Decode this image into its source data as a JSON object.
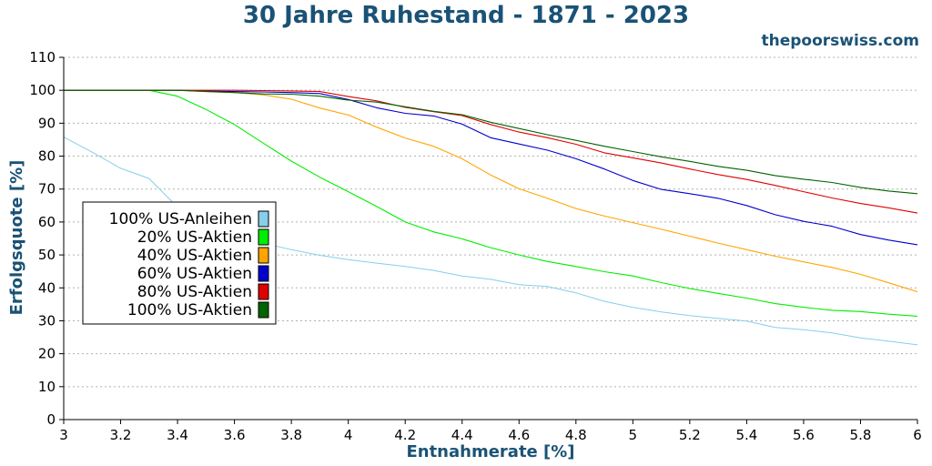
{
  "brand": "thepoorswiss.com",
  "chart_data": {
    "type": "line",
    "title": "30 Jahre Ruhestand - 1871 - 2023",
    "xlabel": "Entnahmerate [%]",
    "ylabel": "Erfolgsquote [%]",
    "xlim": [
      3,
      6
    ],
    "ylim": [
      0,
      110
    ],
    "xticks": [
      "3",
      "3.2",
      "3.4",
      "3.6",
      "3.8",
      "4",
      "4.2",
      "4.4",
      "4.6",
      "4.8",
      "5",
      "5.2",
      "5.4",
      "5.6",
      "5.8",
      "6"
    ],
    "yticks": [
      "0",
      "10",
      "20",
      "30",
      "40",
      "50",
      "60",
      "70",
      "80",
      "90",
      "100",
      "110"
    ],
    "grid": "horizontal-dotted",
    "legend_position": "middle-left",
    "x": [
      3.0,
      3.1,
      3.2,
      3.3,
      3.4,
      3.5,
      3.6,
      3.7,
      3.8,
      3.9,
      4.0,
      4.1,
      4.2,
      4.3,
      4.4,
      4.5,
      4.6,
      4.7,
      4.8,
      4.9,
      5.0,
      5.1,
      5.2,
      5.3,
      5.4,
      5.5,
      5.6,
      5.7,
      5.8,
      5.9,
      6.0
    ],
    "series": [
      {
        "name": "100% US-Anleihen",
        "color": "#87ceeb",
        "values": [
          85.8,
          81.2,
          76.3,
          73.2,
          64.5,
          60.0,
          56.8,
          53.6,
          51.6,
          49.9,
          48.6,
          47.5,
          46.5,
          45.3,
          43.6,
          42.6,
          41.0,
          40.4,
          38.5,
          35.9,
          34.1,
          32.7,
          31.6,
          30.7,
          29.9,
          28.0,
          27.3,
          26.3,
          24.8,
          23.8,
          22.7
        ]
      },
      {
        "name": "20% US-Aktien",
        "color": "#00ee00",
        "values": [
          100,
          100,
          100,
          100,
          98.2,
          94.2,
          89.6,
          84.0,
          78.5,
          73.6,
          69.2,
          64.7,
          60.0,
          57.0,
          54.9,
          52.2,
          50.0,
          48.0,
          46.5,
          44.9,
          43.6,
          41.6,
          39.8,
          38.3,
          36.9,
          35.2,
          34.1,
          33.2,
          32.8,
          32.0,
          31.4
        ]
      },
      {
        "name": "40% US-Aktien",
        "color": "#ffa500",
        "values": [
          100,
          100,
          100,
          100,
          100,
          99.6,
          99.3,
          98.6,
          97.3,
          94.6,
          92.5,
          88.8,
          85.5,
          83.0,
          79.2,
          74.3,
          70.1,
          67.2,
          64.1,
          61.8,
          59.8,
          57.8,
          55.7,
          53.6,
          51.6,
          49.6,
          47.9,
          46.2,
          44.1,
          41.5,
          38.8
        ]
      },
      {
        "name": "60% US-Aktien",
        "color": "#0000cd",
        "values": [
          100,
          100,
          100,
          100,
          100,
          99.8,
          99.6,
          99.5,
          99.3,
          99.0,
          97.2,
          94.7,
          93.0,
          92.2,
          89.7,
          85.6,
          83.7,
          81.8,
          79.2,
          76.1,
          72.6,
          69.9,
          68.6,
          67.2,
          65.0,
          62.2,
          60.2,
          58.7,
          56.2,
          54.5,
          53.1
        ]
      },
      {
        "name": "80% US-Aktien",
        "color": "#e00000",
        "values": [
          100,
          100,
          100,
          100,
          100,
          100,
          100,
          99.9,
          99.8,
          99.6,
          98.1,
          96.8,
          94.8,
          93.5,
          92.3,
          89.6,
          87.3,
          85.6,
          83.6,
          81.0,
          79.5,
          77.9,
          76.1,
          74.4,
          72.9,
          71.1,
          69.2,
          67.3,
          65.6,
          64.3,
          62.7
        ]
      },
      {
        "name": "100% US-Aktien",
        "color": "#006400",
        "values": [
          100,
          100,
          100,
          100,
          100,
          99.6,
          99.3,
          98.9,
          98.8,
          98.2,
          97.0,
          96.4,
          95.0,
          93.6,
          92.6,
          90.3,
          88.4,
          86.5,
          84.8,
          83.0,
          81.4,
          79.8,
          78.4,
          76.9,
          75.7,
          74.1,
          73.0,
          72.0,
          70.5,
          69.4,
          68.6
        ]
      }
    ]
  }
}
